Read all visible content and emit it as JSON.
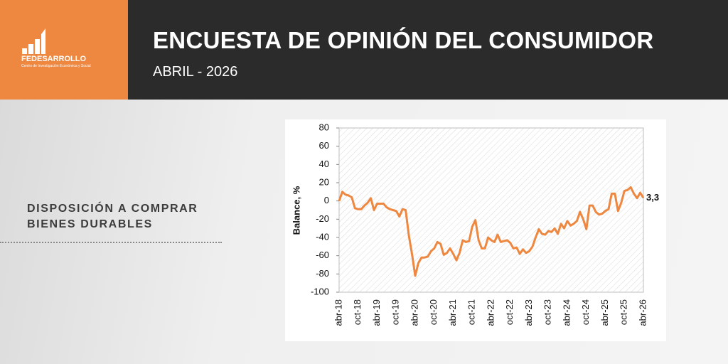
{
  "header": {
    "brand": "FEDESARROLLO",
    "tagline": "Centro de Investigación Económica y Social",
    "title": "ENCUESTA DE OPINIÓN DEL CONSUMIDOR",
    "subtitle": "ABRIL - 2026"
  },
  "side_label": {
    "line1": "DISPOSICIÓN A COMPRAR",
    "line2": "BIENES DURABLES"
  },
  "chart_data": {
    "type": "line",
    "y_label": "Balance, %",
    "categories": [
      "abr-18",
      null,
      null,
      null,
      null,
      null,
      "oct-18",
      null,
      null,
      null,
      null,
      null,
      "abr-19",
      null,
      null,
      null,
      null,
      null,
      "oct-19",
      null,
      null,
      null,
      null,
      null,
      "abr-20",
      null,
      null,
      null,
      null,
      null,
      "oct-20",
      null,
      null,
      null,
      null,
      null,
      "abr-21",
      null,
      null,
      null,
      null,
      null,
      "oct-21",
      null,
      null,
      null,
      null,
      null,
      "abr-22",
      null,
      null,
      null,
      null,
      null,
      "oct-22",
      null,
      null,
      null,
      null,
      null,
      "abr-23",
      null,
      null,
      null,
      null,
      null,
      "oct-23",
      null,
      null,
      null,
      null,
      null,
      "abr-24",
      null,
      null,
      null,
      null,
      null,
      "oct-24",
      null,
      null,
      null,
      null,
      null,
      "abr-25",
      null,
      null,
      null,
      null,
      null,
      "oct-25",
      null,
      null,
      null,
      null,
      null,
      "abr-26"
    ],
    "values": [
      0,
      10,
      7,
      6,
      4,
      -8,
      -9,
      -9,
      -5,
      -2,
      3,
      -10,
      -3,
      -3,
      -3,
      -7,
      -9,
      -10,
      -11,
      -17,
      -9,
      -10,
      -38,
      -58,
      -82,
      -68,
      -62,
      -62,
      -61,
      -55,
      -52,
      -45,
      -47,
      -59,
      -57,
      -52,
      -58,
      -65,
      -57,
      -43,
      -45,
      -44,
      -28,
      -21,
      -43,
      -52,
      -52,
      -40,
      -43,
      -45,
      -37,
      -45,
      -44,
      -43,
      -46,
      -52,
      -51,
      -58,
      -53,
      -57,
      -55,
      -50,
      -40,
      -31,
      -36,
      -37,
      -33,
      -34,
      -30,
      -36,
      -25,
      -30,
      -22,
      -27,
      -25,
      -22,
      -12,
      -20,
      -31,
      -5,
      -5,
      -12,
      -15,
      -14,
      -11,
      -9,
      8,
      8,
      -11,
      -2,
      11,
      12,
      15,
      8,
      3,
      9,
      3.3
    ],
    "value_labels": [
      null,
      null,
      null,
      null,
      null,
      null,
      null,
      null,
      null,
      null,
      null,
      null,
      null,
      null,
      null,
      null,
      null,
      null,
      null,
      null,
      null,
      null,
      null,
      null,
      null,
      null,
      null,
      null,
      null,
      null,
      null,
      null,
      null,
      null,
      null,
      null,
      null,
      null,
      null,
      null,
      null,
      null,
      null,
      null,
      null,
      null,
      null,
      null,
      null,
      null,
      null,
      null,
      null,
      null,
      null,
      null,
      null,
      null,
      null,
      null,
      null,
      null,
      null,
      null,
      null,
      null,
      null,
      null,
      null,
      null,
      null,
      null,
      null,
      null,
      null,
      null,
      null,
      null,
      null,
      null,
      null,
      null,
      null,
      null,
      null,
      null,
      null,
      null,
      null,
      null,
      null,
      null,
      null,
      null,
      null,
      null,
      "3,3"
    ],
    "color": "#ee873f",
    "ylim": [
      -100,
      80
    ],
    "yticks": [
      -100,
      -80,
      -60,
      -40,
      -20,
      0,
      20,
      40,
      60,
      80
    ]
  }
}
